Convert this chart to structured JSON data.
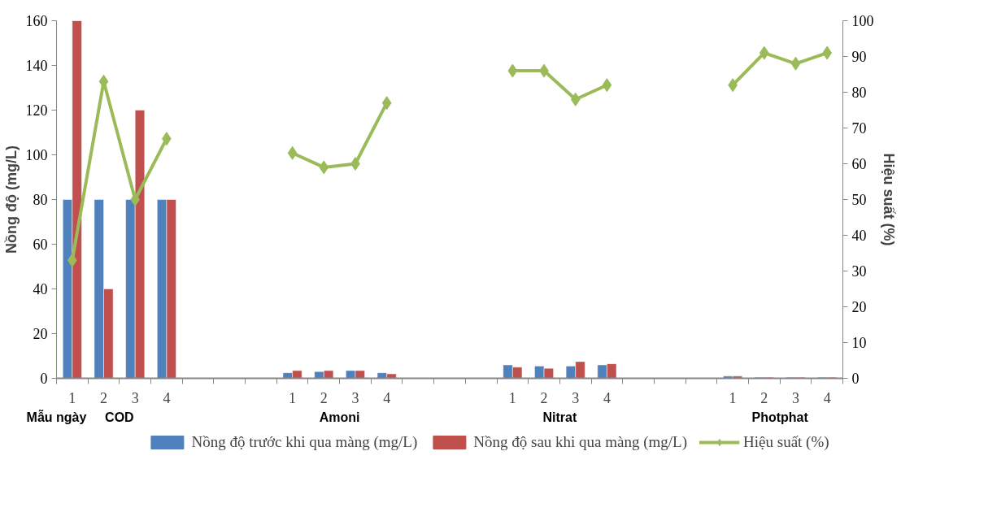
{
  "chart_data": {
    "type": "bar",
    "categories": [
      "1",
      "2",
      "3",
      "4",
      null,
      null,
      null,
      "1",
      "2",
      "3",
      "4",
      null,
      null,
      null,
      "1",
      "2",
      "3",
      "4",
      null,
      null,
      null,
      "1",
      "2",
      "3",
      "4"
    ],
    "series": [
      {
        "name": "Nồng độ trước khi qua màng (mg/L)",
        "color": "#4f81bd",
        "values": [
          80,
          80,
          80,
          80,
          null,
          null,
          null,
          2.5,
          3,
          3.5,
          2.5,
          null,
          null,
          null,
          6,
          5.5,
          5.5,
          6,
          null,
          null,
          null,
          1,
          0.5,
          0.5,
          0.5
        ]
      },
      {
        "name": "Nồng độ sau khi qua màng (mg/L)",
        "color": "#c0504d",
        "values": [
          160,
          40,
          120,
          80,
          null,
          null,
          null,
          3.5,
          3.5,
          3.5,
          2,
          null,
          null,
          null,
          5,
          4.5,
          7.5,
          6.5,
          null,
          null,
          null,
          1,
          0.5,
          0.5,
          0.5
        ]
      },
      {
        "name": "Hiệu suất (%)",
        "type": "line",
        "axis": "y2",
        "color": "#9bbb59",
        "marker": "diamond",
        "values": [
          33,
          83,
          50,
          67,
          null,
          null,
          null,
          63,
          59,
          60,
          77,
          null,
          null,
          null,
          86,
          86,
          78,
          82,
          null,
          null,
          null,
          82,
          91,
          88,
          91
        ]
      }
    ],
    "ylabel": "Nồng độ (mg/L)",
    "y2label": "Hiệu suất (%)",
    "ylim": [
      0,
      160
    ],
    "yticks": [
      0,
      20,
      40,
      60,
      80,
      100,
      120,
      140,
      160
    ],
    "y2lim": [
      0,
      100
    ],
    "y2ticks": [
      0,
      10,
      20,
      30,
      40,
      50,
      60,
      70,
      80,
      90,
      100
    ],
    "annotations": [
      "Mẫu ngày",
      "COD",
      "Amoni",
      "Nitrat",
      "Photphat"
    ],
    "grid": false,
    "legend": "bottom"
  }
}
